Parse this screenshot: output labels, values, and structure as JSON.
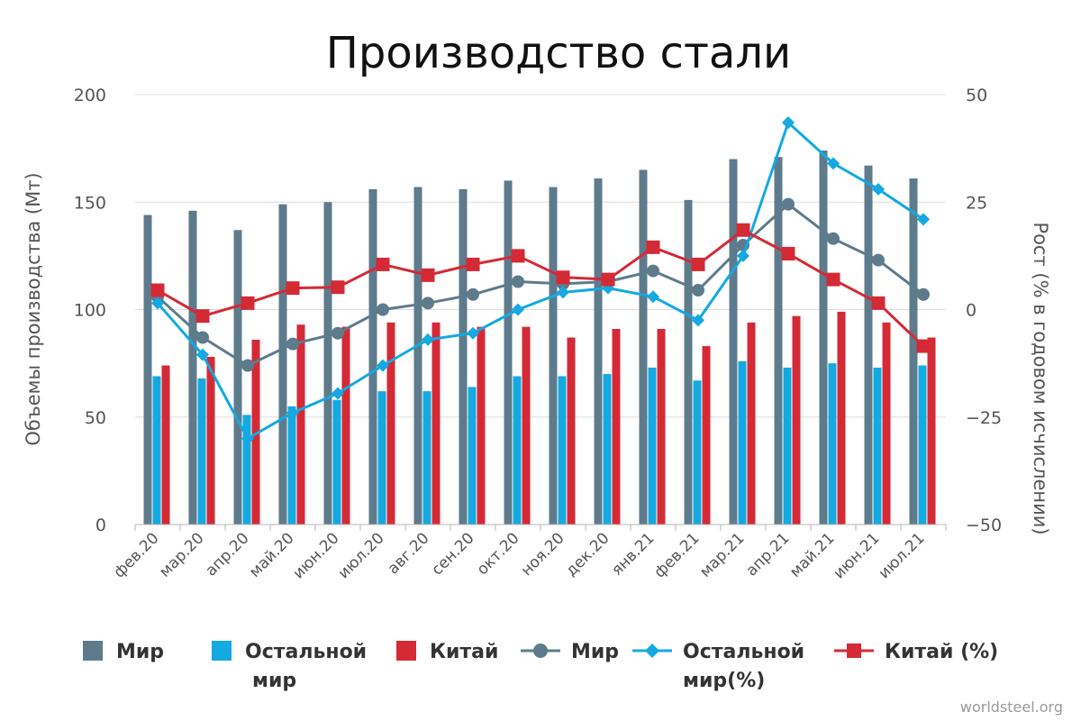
{
  "colors": {
    "world": "#5e7b8c",
    "rest": "#14a9e1",
    "china": "#d42a36",
    "grid": "#dcdcdc",
    "axis_text": "#555555"
  },
  "source": "worldsteel.org",
  "legend": [
    {
      "kind": "bar",
      "color": "#5e7b8c",
      "lines": [
        "Мир"
      ]
    },
    {
      "kind": "bar",
      "color": "#14a9e1",
      "lines": [
        "Остальной",
        "мир"
      ]
    },
    {
      "kind": "bar",
      "color": "#d42a36",
      "lines": [
        "Китай"
      ]
    },
    {
      "kind": "line-circle",
      "color": "#5e7b8c",
      "lines": [
        "Мир"
      ]
    },
    {
      "kind": "line-diamond",
      "color": "#14a9e1",
      "lines": [
        "Остальной",
        "мир(%)"
      ]
    },
    {
      "kind": "line-square",
      "color": "#d42a36",
      "lines": [
        "Китай (%)"
      ]
    }
  ],
  "chart_data": {
    "type": "bar",
    "title": "Производство стали",
    "ylabel": "Объемы производства (Мт)",
    "y2label": "Рост (% в годовом исчислении)",
    "ylim": [
      0,
      200
    ],
    "y2lim": [
      -50,
      50
    ],
    "yticks": [
      "0",
      "50",
      "100",
      "150",
      "200"
    ],
    "y2ticks": [
      "−50",
      "−25",
      "0",
      "25",
      "50"
    ],
    "grid": true,
    "legend_position": "bottom",
    "categories": [
      "фев.20",
      "мар.20",
      "апр.20",
      "май.20",
      "июн.20",
      "июл.20",
      "авг.20",
      "сен.20",
      "окт.20",
      "ноя.20",
      "дек.20",
      "янв.21",
      "фев.21",
      "мар.21",
      "апр.21",
      "май.21",
      "июн.21",
      "июл.21"
    ],
    "bar_series": [
      {
        "name": "Мир",
        "color": "#5e7b8c",
        "axis": "left",
        "values": [
          144,
          146,
          137,
          149,
          150,
          156,
          157,
          156,
          160,
          157,
          161,
          165,
          151,
          170,
          171,
          174,
          167,
          161
        ]
      },
      {
        "name": "Остальной мир",
        "color": "#14a9e1",
        "axis": "left",
        "values": [
          69,
          68,
          51,
          55,
          58,
          62,
          62,
          64,
          69,
          69,
          70,
          73,
          67,
          76,
          73,
          75,
          73,
          74
        ]
      },
      {
        "name": "Китай",
        "color": "#d42a36",
        "axis": "left",
        "values": [
          74,
          78,
          86,
          93,
          92,
          94,
          94,
          92,
          92,
          87,
          91,
          91,
          83,
          94,
          97,
          99,
          94,
          87
        ]
      }
    ],
    "line_series": [
      {
        "name": "Мир",
        "color": "#5e7b8c",
        "marker": "circle",
        "axis": "right",
        "values": [
          3,
          -6.5,
          -13,
          -8,
          -5.5,
          0,
          1.5,
          3.5,
          6.5,
          6,
          6.5,
          9,
          4.5,
          15,
          24.5,
          16.5,
          11.5,
          3.5
        ]
      },
      {
        "name": "Остальной мир(%)",
        "color": "#14a9e1",
        "marker": "diamond",
        "axis": "right",
        "values": [
          1.5,
          -10.5,
          -30,
          -24,
          -19.5,
          -13,
          -7,
          -5.5,
          0,
          4,
          5,
          3,
          -2.5,
          12.5,
          43.5,
          34,
          28,
          21
        ]
      },
      {
        "name": "Китай (%)",
        "color": "#d42a36",
        "marker": "square",
        "axis": "right",
        "values": [
          4.5,
          -1.5,
          1.5,
          5,
          5.2,
          10.5,
          8,
          10.5,
          12.5,
          7.5,
          7,
          14.5,
          10.5,
          18.5,
          13,
          7,
          1.5,
          -8.5
        ]
      }
    ]
  }
}
